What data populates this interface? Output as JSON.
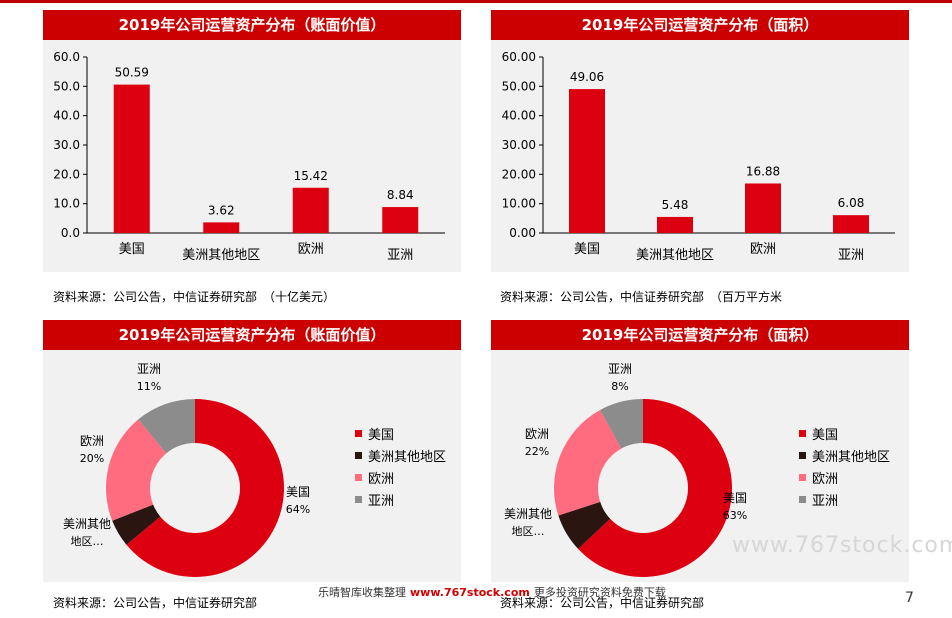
{
  "colors": {
    "title_bg": "#cc0000",
    "bar": "#dd0011",
    "us": "#dd0011",
    "am": "#2b1511",
    "eu": "#ff6b7f",
    "as": "#8c8c8c"
  },
  "panels": [
    {
      "title": "2019年公司运营资产分布（账面价值）",
      "source": "资料来源：公司公告，中信证券研究部　（十亿美元）"
    },
    {
      "title": "2019年公司运营资产分布（面积）",
      "source": "资料来源：公司公告，中信证券研究部　（百万平方米"
    },
    {
      "title": "2019年公司运营资产分布（账面价值）",
      "source": "资料来源：公司公告，中信证券研究部"
    },
    {
      "title": "2019年公司运营资产分布（面积）",
      "source": "资料来源：公司公告，中信证券研究部"
    }
  ],
  "legend": [
    "美国",
    "美洲其他地区",
    "欧洲",
    "亚洲"
  ],
  "chart_data": [
    {
      "type": "bar",
      "categories": [
        "美国",
        "美洲其他地区",
        "欧洲",
        "亚洲"
      ],
      "values": [
        50.59,
        3.62,
        15.42,
        8.84
      ],
      "ylim": [
        0,
        60
      ],
      "yticks": [
        "0.0",
        "10.0",
        "20.0",
        "30.0",
        "40.0",
        "50.0",
        "60.0"
      ],
      "grid": false
    },
    {
      "type": "bar",
      "categories": [
        "美国",
        "美洲其他地区",
        "欧洲",
        "亚洲"
      ],
      "values": [
        49.06,
        5.48,
        16.88,
        6.08
      ],
      "ylim": [
        0,
        60
      ],
      "yticks": [
        "0.00",
        "10.00",
        "20.00",
        "30.00",
        "40.00",
        "50.00",
        "60.00"
      ],
      "grid": false
    },
    {
      "type": "pie",
      "categories": [
        "美国",
        "美洲其他地区",
        "欧洲",
        "亚洲"
      ],
      "values": [
        64,
        5,
        20,
        11
      ],
      "labels": [
        [
          "美国",
          "64%"
        ],
        [
          "美洲其他",
          "地区…"
        ],
        [
          "欧洲",
          "20%"
        ],
        [
          "亚洲",
          "11%"
        ]
      ]
    },
    {
      "type": "pie",
      "categories": [
        "美国",
        "美洲其他地区",
        "欧洲",
        "亚洲"
      ],
      "values": [
        63,
        7,
        22,
        8
      ],
      "labels": [
        [
          "美国",
          "63%"
        ],
        [
          "美洲其他",
          "地区…"
        ],
        [
          "欧洲",
          "22%"
        ],
        [
          "亚洲",
          "8%"
        ]
      ]
    }
  ],
  "footer": {
    "left": "乐晴智库收集整理",
    "url": "www.767stock.com",
    "right": "更多投资研究资料免费下载"
  },
  "watermark": "www.767stock.com",
  "page_number": "7"
}
